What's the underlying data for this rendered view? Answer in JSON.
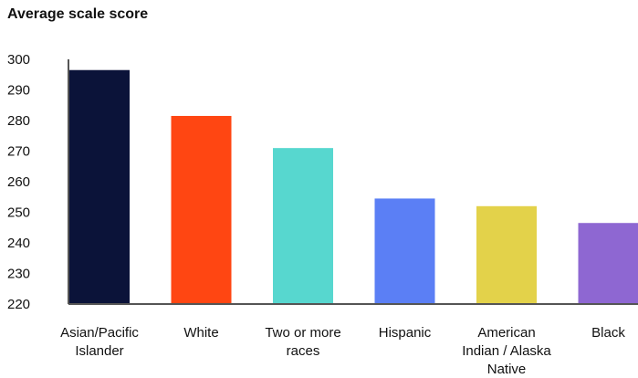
{
  "chart_data": {
    "type": "bar",
    "title": "Average scale score",
    "categories": [
      [
        "Asian/Pacific",
        "Islander"
      ],
      [
        "White"
      ],
      [
        "Two or more",
        "races"
      ],
      [
        "Hispanic"
      ],
      [
        "American",
        "Indian / Alaska",
        "Native"
      ],
      [
        "Black"
      ]
    ],
    "values": [
      296.5,
      281.5,
      271,
      254.5,
      252,
      246.5
    ],
    "colors": [
      "#0b1339",
      "#ff4612",
      "#57d7cf",
      "#5b7ff5",
      "#e3d24a",
      "#8e67d2"
    ],
    "ylim": [
      220,
      300
    ],
    "yticks": [
      220,
      230,
      240,
      250,
      260,
      270,
      280,
      290,
      300
    ],
    "xlabel": "",
    "ylabel": "",
    "grid": false
  }
}
